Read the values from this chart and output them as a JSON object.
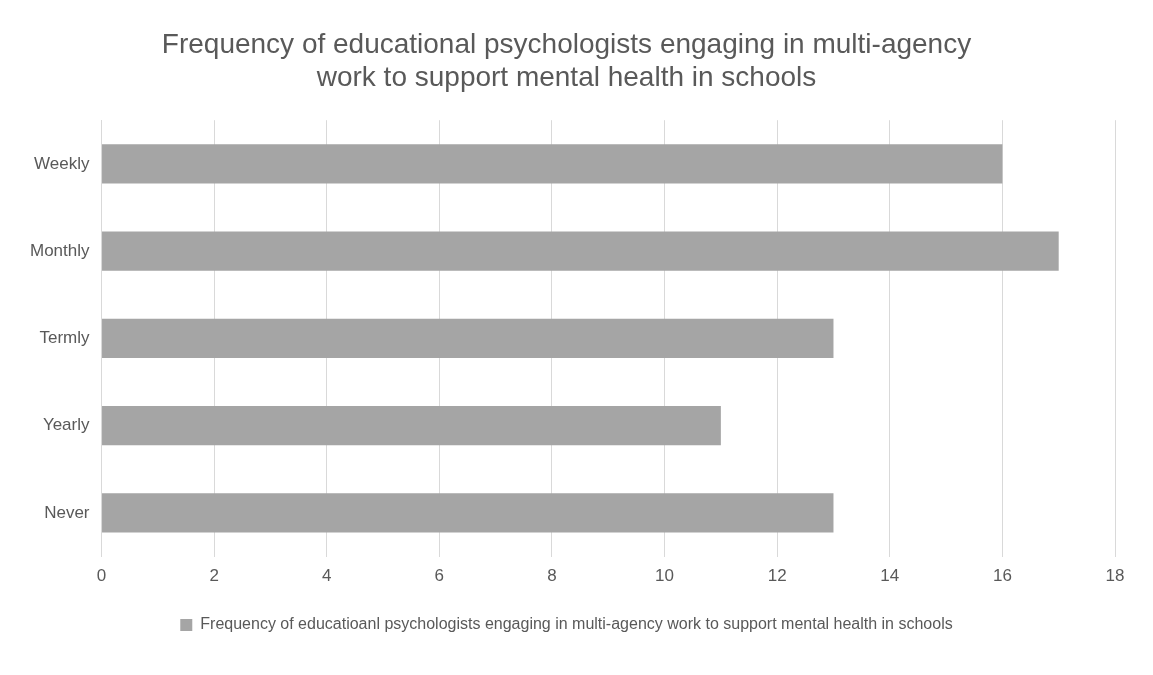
{
  "chart_data": {
    "type": "bar",
    "orientation": "horizontal",
    "title": "Frequency of educational psychologists engaging in multi-agency work to support mental health in schools",
    "categories": [
      "Weekly",
      "Monthly",
      "Termly",
      "Yearly",
      "Never"
    ],
    "series": [
      {
        "name": "Frequency of educatioanl psychologists engaging in multi-agency work to support mental health in schools",
        "color": "#a5a5a5",
        "values": [
          16,
          17,
          13,
          11,
          13
        ]
      }
    ],
    "xlim": [
      0,
      18
    ],
    "xticks": [
      0,
      2,
      4,
      6,
      8,
      10,
      12,
      14,
      16,
      18
    ],
    "grid": "x",
    "legend": "bottom"
  }
}
